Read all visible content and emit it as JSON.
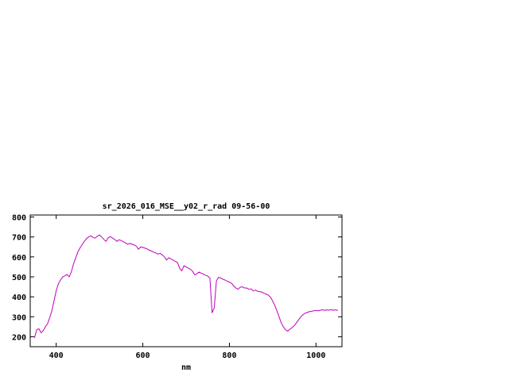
{
  "page": {
    "background": "#ffffff"
  },
  "chart_style": {
    "line_color": "#bf00bf",
    "border_color": "#000000",
    "text_color": "#000000",
    "tick_length": 5
  },
  "chart_data": {
    "type": "line",
    "title": "sr_2026_016_MSE__y02_r_rad 09-56-00",
    "xlabel": "nm",
    "ylabel": "",
    "xlim": [
      340,
      1060
    ],
    "ylim": [
      150,
      810
    ],
    "xticks": [
      400,
      600,
      800,
      1000
    ],
    "yticks": [
      200,
      300,
      400,
      500,
      600,
      700,
      800
    ],
    "grid": false,
    "legend_position": "none",
    "series": [
      {
        "name": "sr_2026_016_MSE__y02_r_rad",
        "x": [
          350,
          355,
          360,
          365,
          370,
          375,
          380,
          385,
          390,
          395,
          400,
          405,
          410,
          415,
          420,
          425,
          430,
          435,
          440,
          445,
          450,
          455,
          460,
          465,
          470,
          475,
          480,
          485,
          490,
          495,
          500,
          505,
          510,
          515,
          520,
          525,
          530,
          535,
          540,
          545,
          550,
          555,
          560,
          565,
          570,
          575,
          580,
          585,
          590,
          595,
          600,
          605,
          610,
          615,
          620,
          625,
          630,
          635,
          640,
          645,
          650,
          655,
          660,
          665,
          670,
          675,
          680,
          685,
          690,
          695,
          700,
          705,
          710,
          715,
          720,
          725,
          730,
          735,
          740,
          745,
          750,
          755,
          760,
          765,
          770,
          775,
          780,
          785,
          790,
          795,
          800,
          805,
          810,
          815,
          820,
          825,
          830,
          835,
          840,
          845,
          850,
          855,
          860,
          865,
          870,
          875,
          880,
          885,
          890,
          895,
          900,
          905,
          910,
          915,
          920,
          925,
          930,
          935,
          940,
          945,
          950,
          955,
          960,
          965,
          970,
          975,
          980,
          985,
          990,
          995,
          1000,
          1005,
          1010,
          1015,
          1020,
          1025,
          1030,
          1035,
          1040,
          1045,
          1050
        ],
        "y": [
          195,
          235,
          240,
          220,
          230,
          250,
          265,
          295,
          330,
          380,
          430,
          465,
          485,
          500,
          505,
          512,
          500,
          525,
          565,
          595,
          625,
          645,
          662,
          678,
          692,
          700,
          706,
          698,
          694,
          704,
          710,
          700,
          688,
          678,
          696,
          702,
          694,
          688,
          678,
          686,
          682,
          676,
          670,
          664,
          668,
          664,
          660,
          654,
          638,
          650,
          648,
          644,
          640,
          634,
          630,
          624,
          620,
          614,
          618,
          610,
          600,
          584,
          596,
          590,
          584,
          578,
          572,
          544,
          530,
          556,
          550,
          544,
          538,
          528,
          510,
          516,
          524,
          518,
          514,
          508,
          504,
          494,
          320,
          345,
          480,
          498,
          494,
          488,
          484,
          478,
          474,
          468,
          454,
          444,
          438,
          448,
          450,
          444,
          444,
          438,
          440,
          430,
          434,
          428,
          426,
          424,
          418,
          414,
          408,
          398,
          378,
          356,
          328,
          298,
          268,
          248,
          234,
          228,
          238,
          246,
          256,
          270,
          286,
          300,
          310,
          318,
          322,
          326,
          328,
          330,
          332,
          330,
          333,
          335,
          332,
          335,
          333,
          336,
          333,
          335,
          332
        ]
      }
    ]
  }
}
